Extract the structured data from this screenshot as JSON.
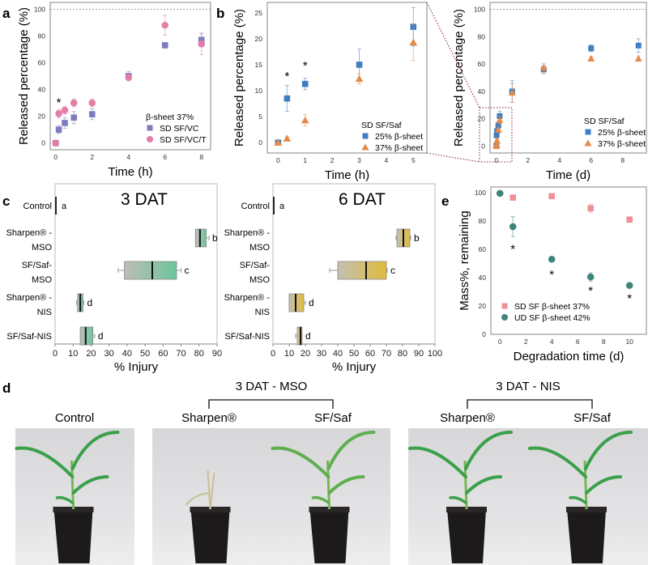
{
  "figure": {
    "panel_letters": [
      "a",
      "b",
      "c",
      "e",
      "d"
    ]
  },
  "colors": {
    "vc": "#7d7cc0",
    "vct": "#e27ea8",
    "blue": "#3f7fc1",
    "orange": "#e58a4a",
    "green": "#6cc69c",
    "gold": "#e0bb3d",
    "grey_box": "#bdbdb6",
    "sd_pink": "#ef8f96",
    "ud_teal": "#3d8578",
    "zoom_box": "#9e4a66"
  },
  "chart_data": [
    {
      "id": "a",
      "type": "scatter",
      "title": "",
      "xlabel": "Time (h)",
      "ylabel": "Released percentage (%)",
      "xlim": [
        -0.3,
        8.5
      ],
      "ylim": [
        -5,
        105
      ],
      "xticks": [
        0,
        2,
        4,
        6,
        8
      ],
      "yticks": [
        0,
        20,
        40,
        60,
        80,
        100
      ],
      "reference_line": 100,
      "legend_title": "β-sheet 37%",
      "legend_position": "bottom-right",
      "series": [
        {
          "name": "SD SF/VC",
          "marker": "square",
          "color_key": "vc",
          "x": [
            0,
            0.17,
            0.5,
            1,
            2,
            4,
            6,
            8
          ],
          "y": [
            0,
            10,
            15,
            19,
            21.5,
            50,
            73,
            77
          ],
          "err": [
            0,
            3,
            4,
            4.5,
            4,
            3.5,
            2,
            5
          ]
        },
        {
          "name": "SD SF/VC/T",
          "marker": "circle",
          "color_key": "vct",
          "x": [
            0,
            0.17,
            0.5,
            1,
            2,
            4,
            6,
            8
          ],
          "y": [
            0,
            22,
            24.5,
            30,
            30,
            49,
            88,
            74
          ],
          "err": [
            0,
            3,
            3,
            3,
            3,
            2,
            7.5,
            8
          ]
        }
      ],
      "annotations": [
        {
          "text": "*",
          "x": 0.17,
          "y": 31
        }
      ]
    },
    {
      "id": "b",
      "type": "scatter",
      "title": "",
      "xlabel": "Time (h)",
      "ylabel": "Released percentage (%)",
      "xlim": [
        -0.4,
        5.5
      ],
      "ylim": [
        -2,
        27
      ],
      "xticks": [
        0,
        1,
        2,
        3,
        4,
        5
      ],
      "yticks": [
        0,
        5,
        10,
        15,
        20,
        25
      ],
      "legend_title": "SD SF/Saf",
      "legend_position": "bottom-right",
      "series": [
        {
          "name": "25% β-sheet",
          "marker": "square",
          "color_key": "blue",
          "x": [
            0,
            0.33,
            1,
            3,
            5
          ],
          "y": [
            0,
            8.5,
            11.3,
            15,
            22.3
          ],
          "err": [
            0,
            2.5,
            1.1,
            3,
            3.7
          ]
        },
        {
          "name": "37% β-sheet",
          "marker": "triangle",
          "color_key": "orange",
          "x": [
            0,
            0.33,
            1,
            3,
            5
          ],
          "y": [
            0,
            0.8,
            4.3,
            12.3,
            19.3
          ],
          "err": [
            0,
            0.3,
            1.1,
            1,
            3.5
          ]
        }
      ],
      "annotations": [
        {
          "text": "*",
          "x": 0.33,
          "y": 13
        },
        {
          "text": "*",
          "x": 1,
          "y": 15
        }
      ]
    },
    {
      "id": "b-right",
      "type": "scatter",
      "title": "",
      "xlabel": "Time (d)",
      "ylabel": "Released percentage (%)",
      "xlim": [
        -0.4,
        9.5
      ],
      "ylim": [
        -5,
        105
      ],
      "xticks": [
        0,
        2,
        4,
        6,
        8
      ],
      "yticks": [
        0,
        20,
        40,
        60,
        80,
        100
      ],
      "reference_line": 100,
      "legend_title": "SD SF/Saf",
      "legend_position": "bottom-right",
      "zoom_region": {
        "x": [
          -0.3,
          1.1
        ],
        "y": [
          -8,
          26
        ]
      },
      "series": [
        {
          "name": "25% β-sheet",
          "marker": "square",
          "color_key": "blue",
          "x": [
            0,
            0.014,
            0.042,
            0.125,
            0.21,
            1,
            3,
            6,
            9
          ],
          "y": [
            0,
            8,
            11,
            15,
            22,
            40,
            56,
            71.5,
            73.5
          ],
          "err": [
            0,
            2,
            1,
            3,
            3.5,
            8,
            3,
            2.5,
            5
          ]
        },
        {
          "name": "37% β-sheet",
          "marker": "triangle",
          "color_key": "orange",
          "x": [
            0,
            0.014,
            0.042,
            0.125,
            0.21,
            1,
            3,
            6,
            9
          ],
          "y": [
            0,
            1,
            4,
            12,
            19,
            39,
            57.5,
            64,
            64
          ],
          "err": [
            0,
            0.3,
            1,
            1,
            3,
            7,
            3,
            1.5,
            2
          ]
        }
      ]
    },
    {
      "id": "c-3dat",
      "type": "box",
      "title": "3 DAT",
      "xlabel": "% Injury",
      "xlim": [
        0,
        90
      ],
      "xticks": [
        0,
        10,
        20,
        30,
        40,
        50,
        60,
        70,
        80,
        90
      ],
      "fill_color_key": "green",
      "categories": [
        "Control",
        "Sharpen® -\nMSO",
        "SF/Saf-\nMSO",
        "Sharpen® -\nNIS",
        "SF/Saf-NIS"
      ],
      "boxes": [
        {
          "label": "Control",
          "letter": "a",
          "min": 0,
          "q1": 0,
          "median": 0,
          "q3": 0,
          "max": 0
        },
        {
          "label": "Sharpen® - MSO",
          "letter": "b",
          "min": 78,
          "q1": 78,
          "median": 80.5,
          "q3": 84,
          "max": 85.5
        },
        {
          "label": "SF/Saf- MSO",
          "letter": "c",
          "min": 35,
          "q1": 38.5,
          "median": 54,
          "q3": 67.5,
          "max": 70
        },
        {
          "label": "Sharpen® - NIS",
          "letter": "d",
          "min": 12,
          "q1": 12.5,
          "median": 14,
          "q3": 15.5,
          "max": 16
        },
        {
          "label": "SF/Saf-NIS",
          "letter": "d",
          "min": 14,
          "q1": 14,
          "median": 17,
          "q3": 21,
          "max": 22
        }
      ]
    },
    {
      "id": "c-6dat",
      "type": "box",
      "title": "6 DAT",
      "xlabel": "% Injury",
      "xlim": [
        0,
        100
      ],
      "xticks": [
        0,
        10,
        20,
        30,
        40,
        50,
        60,
        70,
        80,
        90,
        100
      ],
      "fill_color_key": "gold",
      "categories": [
        "Control",
        "Sharpen® -\nMSO",
        "SF/Saf-\nMSO",
        "Sharpen® -\nNIS",
        "SF/Saf-NIS"
      ],
      "boxes": [
        {
          "label": "Control",
          "letter": "a",
          "min": 0,
          "q1": 0,
          "median": 0,
          "q3": 0,
          "max": 0
        },
        {
          "label": "Sharpen® - MSO",
          "letter": "b",
          "min": 76,
          "q1": 76.5,
          "median": 80.5,
          "q3": 84.5,
          "max": 85
        },
        {
          "label": "SF/Saf- MSO",
          "letter": "c",
          "min": 35,
          "q1": 40,
          "median": 57.5,
          "q3": 70,
          "max": 70.5
        },
        {
          "label": "Sharpen® - NIS",
          "letter": "d",
          "min": 10,
          "q1": 10,
          "median": 14,
          "q3": 19,
          "max": 20
        },
        {
          "label": "SF/Saf-NIS",
          "letter": "d",
          "min": 14,
          "q1": 15,
          "median": 17,
          "q3": 18,
          "max": 18
        }
      ]
    },
    {
      "id": "e",
      "type": "scatter",
      "title": "",
      "xlabel": "Degradation time (d)",
      "ylabel": "Mass%, remaining",
      "xlim": [
        -0.7,
        11.3
      ],
      "ylim": [
        0,
        104
      ],
      "xticks": [
        0,
        2,
        4,
        6,
        8,
        10
      ],
      "yticks": [
        0,
        20,
        40,
        60,
        80,
        100
      ],
      "legend_position": "bottom-left",
      "series": [
        {
          "name": "SD SF β-sheet 37%",
          "marker": "square",
          "color_key": "sd_pink",
          "x": [
            1,
            4,
            7,
            10
          ],
          "y": [
            96.5,
            97.5,
            89,
            81
          ],
          "err": [
            1,
            1,
            3,
            1
          ]
        },
        {
          "name": "UD SF β-sheet 42%",
          "marker": "circle",
          "color_key": "ud_teal",
          "x": [
            0,
            1,
            4,
            7,
            10
          ],
          "y": [
            99.5,
            76,
            53,
            40.5,
            34.5
          ],
          "err": [
            0.5,
            7,
            1.5,
            3,
            1
          ]
        }
      ],
      "annotations": [
        {
          "text": "*",
          "x": 1,
          "y": 61
        },
        {
          "text": "*",
          "x": 4,
          "y": 43
        },
        {
          "text": "*",
          "x": 7,
          "y": 31.5
        },
        {
          "text": "*",
          "x": 10,
          "y": 26
        }
      ]
    }
  ],
  "photos": {
    "labels": {
      "control": "Control",
      "group_mso": "3 DAT - MSO",
      "group_nis": "3 DAT - NIS",
      "sharpen": "Sharpen®",
      "sfsaf": "SF/Saf"
    },
    "items": [
      {
        "id": "control",
        "condition": "healthy"
      },
      {
        "id": "mso-sharpen",
        "condition": "severely injured"
      },
      {
        "id": "mso-sfsaf",
        "condition": "injured"
      },
      {
        "id": "nis-sharpen",
        "condition": "mildly injured"
      },
      {
        "id": "nis-sfsaf",
        "condition": "mildly injured"
      }
    ]
  }
}
